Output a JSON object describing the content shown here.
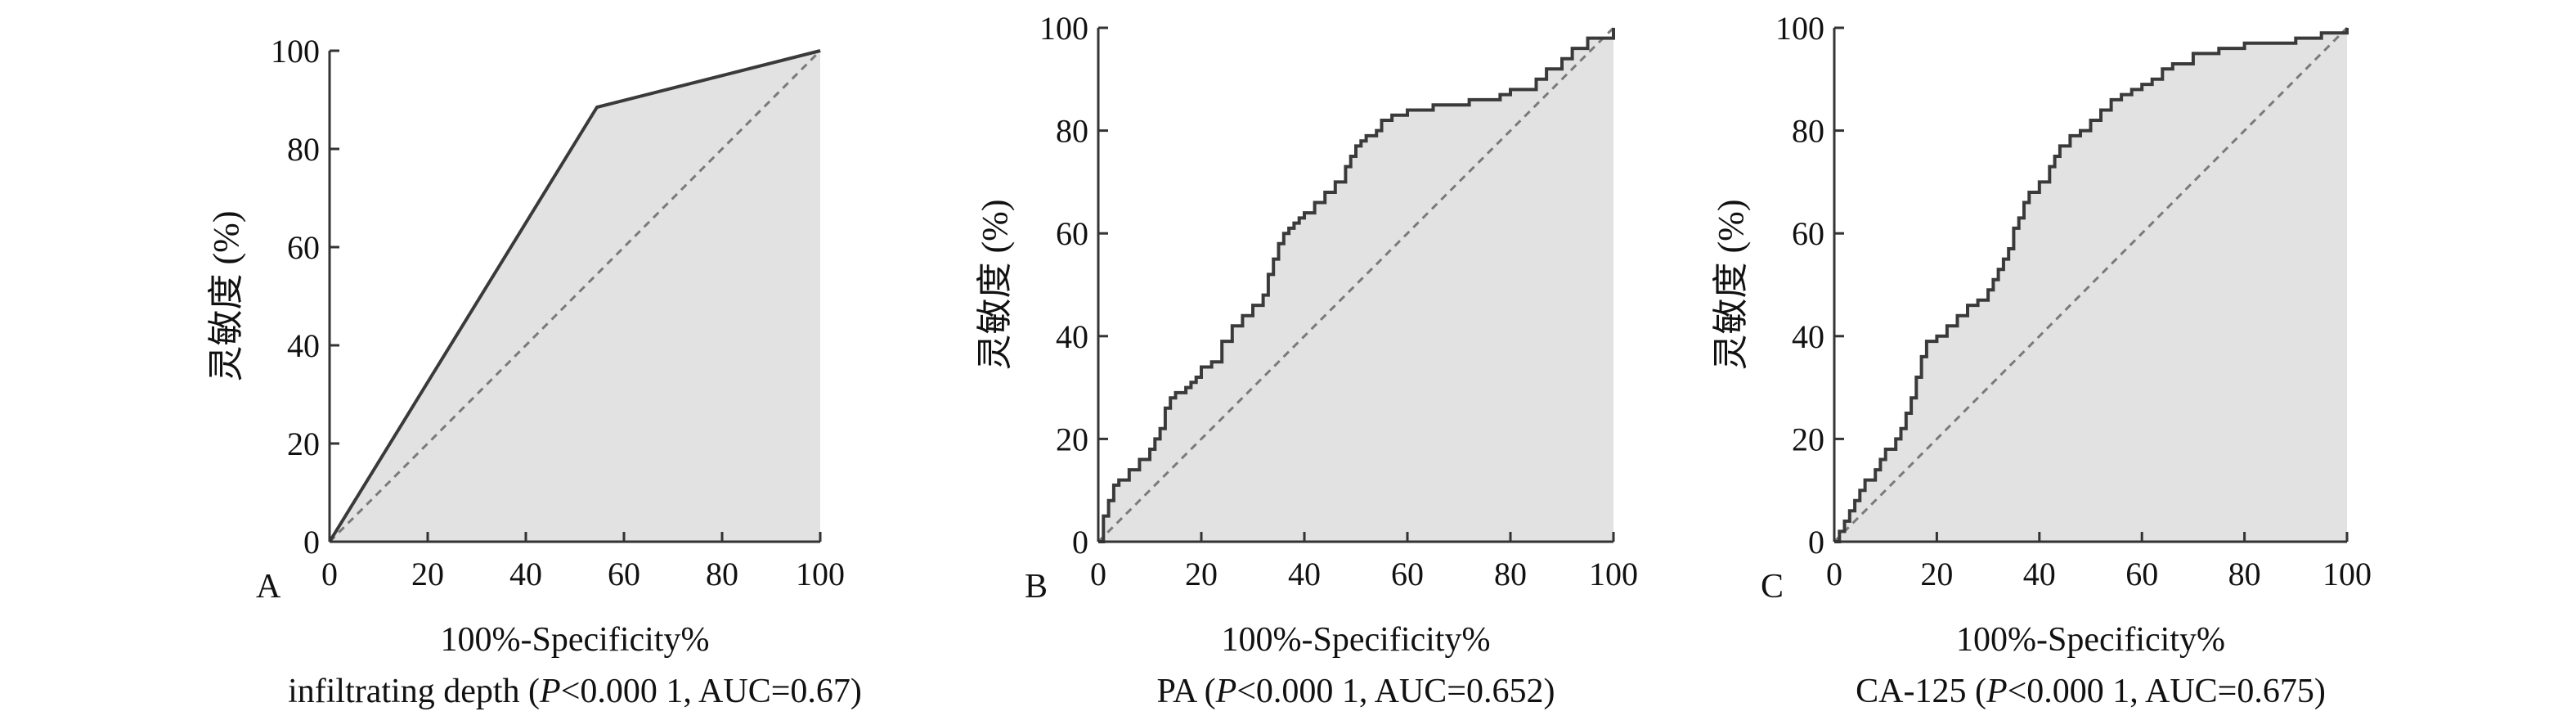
{
  "colors": {
    "fill": "#e2e2e2",
    "curve": "#3a3a3a",
    "diagonal": "#7a7a7a",
    "axis": "#333333",
    "text": "#111111"
  },
  "chart_data": [
    {
      "type": "line",
      "panel_label": "A",
      "xlabel": "100%-Specificity%",
      "ylabel": "灵敏度 (%)",
      "caption": {
        "pre": "infiltrating depth (",
        "p": "P",
        "post": "<0.000 1, AUC=0.67)"
      },
      "xlim": [
        0,
        100
      ],
      "ylim": [
        0,
        100
      ],
      "xticks": [
        "0",
        "20",
        "40",
        "60",
        "80",
        "100"
      ],
      "yticks": [
        "0",
        "20",
        "40",
        "60",
        "80",
        "100"
      ],
      "reference_line": [
        [
          0,
          0
        ],
        [
          100,
          100
        ]
      ],
      "step": false,
      "series": [
        {
          "x": [
            0,
            54.5,
            100
          ],
          "y": [
            0,
            88.5,
            100
          ]
        }
      ]
    },
    {
      "type": "line",
      "panel_label": "B",
      "xlabel": "100%-Specificity%",
      "ylabel": "灵敏度 (%)",
      "caption": {
        "pre": "PA (",
        "p": "P",
        "post": "<0.000 1, AUC=0.652)"
      },
      "xlim": [
        0,
        100
      ],
      "ylim": [
        0,
        100
      ],
      "xticks": [
        "0",
        "20",
        "40",
        "60",
        "80",
        "100"
      ],
      "yticks": [
        "0",
        "20",
        "40",
        "60",
        "80",
        "100"
      ],
      "reference_line": [
        [
          0,
          0
        ],
        [
          100,
          100
        ]
      ],
      "step": true,
      "series": [
        {
          "x": [
            0,
            1,
            2,
            3,
            4,
            6,
            8,
            10,
            11,
            12,
            13,
            14,
            15,
            17,
            18,
            19,
            20,
            22,
            24,
            26,
            28,
            30,
            32,
            33,
            34,
            35,
            36,
            37,
            38,
            39,
            40,
            42,
            44,
            46,
            48,
            49,
            50,
            51,
            52,
            54,
            55,
            57,
            60,
            65,
            70,
            72,
            75,
            78,
            80,
            83,
            85,
            87,
            90,
            92,
            95,
            100
          ],
          "y": [
            0,
            5,
            8,
            11,
            12,
            14,
            16,
            18,
            20,
            22,
            26,
            28,
            29,
            30,
            31,
            32,
            34,
            35,
            39,
            42,
            44,
            46,
            48,
            52,
            55,
            58,
            60,
            61,
            62,
            63,
            64,
            66,
            68,
            70,
            73,
            75,
            77,
            78,
            79,
            80,
            82,
            83,
            84,
            85,
            85,
            86,
            86,
            87,
            88,
            88,
            90,
            92,
            94,
            96,
            98,
            100
          ]
        }
      ]
    },
    {
      "type": "line",
      "panel_label": "C",
      "xlabel": "100%-Specificity%",
      "ylabel": "灵敏度 (%)",
      "caption": {
        "pre": "CA-125 (",
        "p": "P",
        "post": "<0.000 1, AUC=0.675)"
      },
      "xlim": [
        0,
        100
      ],
      "ylim": [
        0,
        100
      ],
      "xticks": [
        "0",
        "20",
        "40",
        "60",
        "80",
        "100"
      ],
      "yticks": [
        "0",
        "20",
        "40",
        "60",
        "80",
        "100"
      ],
      "reference_line": [
        [
          0,
          0
        ],
        [
          100,
          100
        ]
      ],
      "step": true,
      "series": [
        {
          "x": [
            0,
            1,
            2,
            3,
            4,
            5,
            6,
            8,
            9,
            10,
            12,
            13,
            14,
            15,
            16,
            17,
            18,
            20,
            22,
            24,
            26,
            28,
            30,
            31,
            32,
            33,
            34,
            35,
            36,
            37,
            38,
            40,
            42,
            43,
            44,
            46,
            48,
            50,
            52,
            54,
            56,
            58,
            60,
            62,
            64,
            66,
            70,
            75,
            80,
            85,
            90,
            95,
            100
          ],
          "y": [
            0,
            2,
            4,
            6,
            8,
            10,
            12,
            14,
            16,
            18,
            20,
            22,
            25,
            28,
            32,
            36,
            39,
            40,
            42,
            44,
            46,
            47,
            49,
            51,
            53,
            55,
            57,
            61,
            63,
            66,
            68,
            70,
            73,
            75,
            77,
            79,
            80,
            82,
            84,
            86,
            87,
            88,
            89,
            90,
            92,
            93,
            95,
            96,
            97,
            97,
            98,
            99,
            100
          ]
        }
      ]
    }
  ]
}
